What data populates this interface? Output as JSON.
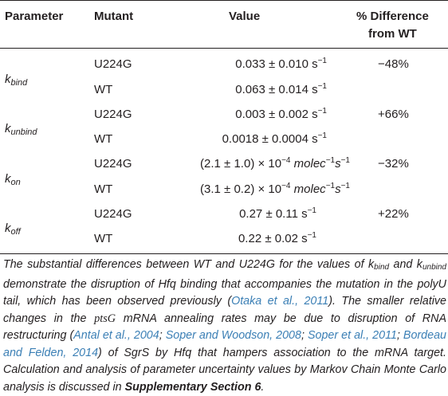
{
  "headers": {
    "parameter": "Parameter",
    "mutant": "Mutant",
    "value": "Value",
    "difference_line1": "% Difference",
    "difference_line2": "from WT"
  },
  "rows": [
    {
      "param_base": "k",
      "param_sub": "bind",
      "mutant1": "U224G",
      "value1": "0.033 ± 0.010 s",
      "unit1": "−1",
      "mutant2": "WT",
      "value2": "0.063 ± 0.014 s",
      "unit2": "−1",
      "difference": "−48%"
    },
    {
      "param_base": "k",
      "param_sub": "unbind",
      "mutant1": "U224G",
      "value1": "0.003 ± 0.002 s",
      "unit1": "−1",
      "mutant2": "WT",
      "value2": "0.0018 ± 0.0004 s",
      "unit2": "−1",
      "difference": "+66%"
    },
    {
      "param_base": "k",
      "param_sub": "on",
      "mutant1": "U224G",
      "value1": "(2.1 ± 1.0) × 10",
      "unit1": "−4",
      "mutant2": "WT",
      "value2": "(3.1 ± 0.2) × 10",
      "unit2": "−4",
      "difference": "−32%"
    },
    {
      "param_base": "k",
      "param_sub": "off",
      "mutant1": "U224G",
      "value1": "0.27 ± 0.11 s",
      "unit1": "−1",
      "mutant2": "WT",
      "value2": "0.22 ± 0.02 s",
      "unit2": "−1",
      "difference": "+22%"
    }
  ],
  "kon_units": {
    "molec": "molec",
    "exp": "−1",
    "s": "s",
    "sexp": "−1"
  },
  "caption": {
    "p1": "The substantial differences between WT and U224G for the values of ",
    "k1_base": "k",
    "k1_sub": "bind",
    "p2": " and ",
    "k2_base": "k",
    "k2_sub": "unbind",
    "p3": " demonstrate the disruption of Hfq binding that accompanies the mutation in the polyU tail, which has been observed previously (",
    "ref1": "Otaka et al., 2011",
    "p4": "). The smaller relative changes in the ",
    "gene": "ptsG",
    "p5": " mRNA annealing rates may be due to disruption of RNA restructuring (",
    "ref2": "Antal et al., 2004",
    "sep1": "; ",
    "ref3": "Soper and Woodson, 2008",
    "sep2": "; ",
    "ref4": "Soper et al., 2011",
    "sep3": "; ",
    "ref5": "Bordeau and Felden, 2014",
    "p6": ") of SgrS by Hfq that hampers association to the mRNA target. Calculation and analysis of parameter uncertainty values by Markov Chain Monte Carlo analysis is discussed in ",
    "supp": "Supplementary Section 6",
    "p7": "."
  }
}
